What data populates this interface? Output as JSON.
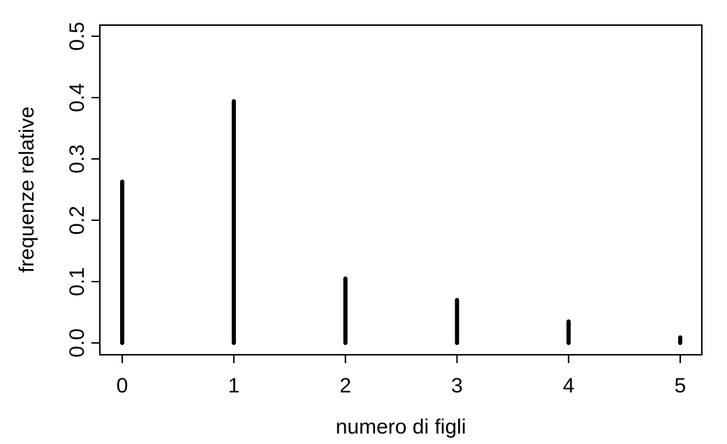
{
  "chart_data": {
    "type": "bar",
    "style": "spike-lines",
    "categories": [
      "0",
      "1",
      "2",
      "3",
      "4",
      "5"
    ],
    "x": [
      0,
      1,
      2,
      3,
      4,
      5
    ],
    "values": [
      0.263,
      0.394,
      0.105,
      0.07,
      0.035,
      0.009
    ],
    "xlabel": "numero di figli",
    "ylabel": "frequenze relative",
    "xlim": [
      -0.2,
      5.2
    ],
    "ylim": [
      0,
      0.5
    ],
    "x_ticks": [
      "0",
      "1",
      "2",
      "3",
      "4",
      "5"
    ],
    "y_ticks": [
      "0.0",
      "0.1",
      "0.2",
      "0.3",
      "0.4",
      "0.5"
    ],
    "grid": false,
    "legend": "none",
    "bar_color": "#000000"
  }
}
